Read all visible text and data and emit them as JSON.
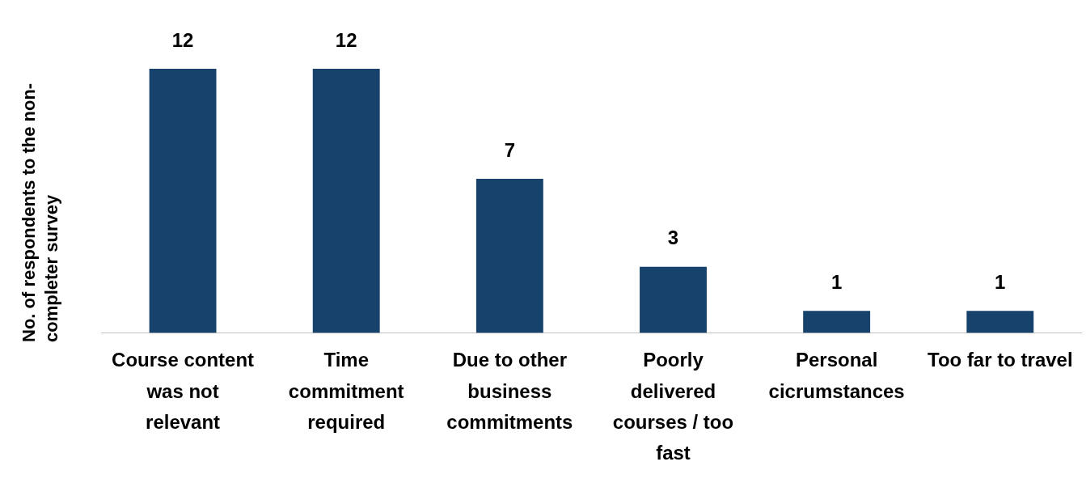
{
  "chart_data": {
    "type": "bar",
    "ylabel": "No. of respondents to the non-completer survey",
    "categories": [
      "Course content was not relevant",
      "Time commitment required",
      "Due to other business commitments",
      "Poorly delivered courses / too fast",
      "Personal cicrumstances",
      "Too far to travel"
    ],
    "values": [
      12,
      12,
      7,
      3,
      1,
      1
    ],
    "color": "#16426b",
    "data_labels": true,
    "grid": false,
    "legend": false
  }
}
